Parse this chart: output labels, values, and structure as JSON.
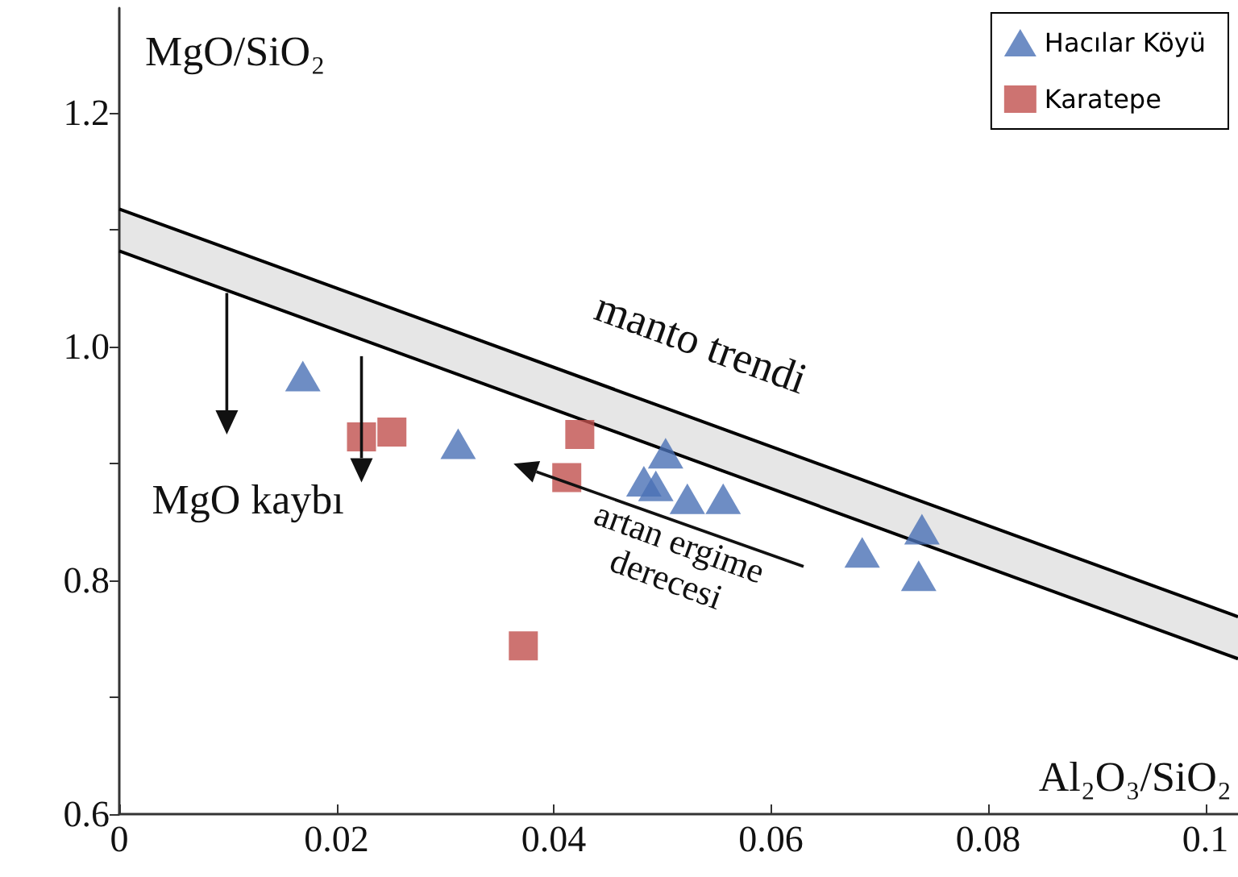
{
  "chart_data": {
    "type": "scatter",
    "xlabel": "Al₂O₃/SiO₂",
    "ylabel": "MgO/SiO₂",
    "xlim": [
      0,
      0.103
    ],
    "xticks": [
      0,
      0.02,
      0.04,
      0.06,
      0.08,
      {
        "value": 0.1,
        "label": "0.1"
      }
    ],
    "ylim": [
      0.6,
      1.29
    ],
    "yticks": [
      {
        "value": 0.6,
        "label": "0.6"
      },
      {
        "value": 0.7,
        "label": null
      },
      {
        "value": 0.8,
        "label": "0.8"
      },
      {
        "value": 0.9,
        "label": null
      },
      {
        "value": 1.0,
        "label": "1.0"
      },
      {
        "value": 1.1,
        "label": null
      },
      {
        "value": 1.2,
        "label": "1.2"
      }
    ],
    "grid": false,
    "legend": "top right",
    "series": [
      {
        "type": "line",
        "color": "#000000",
        "marker": "none",
        "x": [
          0,
          0.103
        ],
        "values": [
          1.118,
          0.769
        ]
      },
      {
        "type": "line",
        "color": "#000000",
        "marker": "none",
        "x": [
          0,
          0.103
        ],
        "values": [
          1.082,
          0.733
        ]
      },
      {
        "name": "Hacılar Köyü",
        "color": "#4a70b5",
        "marker": "triangle",
        "x": [
          0.0169,
          0.0312,
          0.0503,
          0.0483,
          0.0494,
          0.0523,
          0.0556,
          0.0684,
          0.0739,
          0.0736
        ],
        "values": [
          0.975,
          0.917,
          0.909,
          0.885,
          0.881,
          0.87,
          0.87,
          0.824,
          0.844,
          0.804
        ]
      },
      {
        "name": "Karatepe",
        "color": "#c0504d",
        "marker": "square",
        "x": [
          0.0223,
          0.0251,
          0.0424,
          0.0412,
          0.0372
        ],
        "values": [
          0.923,
          0.927,
          0.925,
          0.888,
          0.744
        ]
      }
    ],
    "annotations": [
      "manto trendi",
      "MgO kaybı",
      "artan ergime\nderecesi"
    ]
  }
}
